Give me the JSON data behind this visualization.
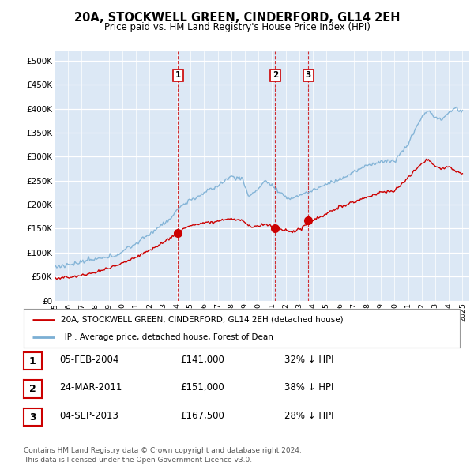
{
  "title": "20A, STOCKWELL GREEN, CINDERFORD, GL14 2EH",
  "subtitle": "Price paid vs. HM Land Registry's House Price Index (HPI)",
  "ylabel_ticks": [
    "£0",
    "£50K",
    "£100K",
    "£150K",
    "£200K",
    "£250K",
    "£300K",
    "£350K",
    "£400K",
    "£450K",
    "£500K"
  ],
  "ytick_values": [
    0,
    50000,
    100000,
    150000,
    200000,
    250000,
    300000,
    350000,
    400000,
    450000,
    500000
  ],
  "ylim": [
    0,
    520000
  ],
  "xlim_start": 1995.0,
  "xlim_end": 2025.5,
  "hpi_color": "#7bafd4",
  "price_color": "#cc0000",
  "legend_label_price": "20A, STOCKWELL GREEN, CINDERFORD, GL14 2EH (detached house)",
  "legend_label_hpi": "HPI: Average price, detached house, Forest of Dean",
  "trans_times": [
    2004.09,
    2011.23,
    2013.67
  ],
  "trans_prices": [
    141000,
    151000,
    167500
  ],
  "table_rows": [
    {
      "num": "1",
      "date": "05-FEB-2004",
      "price": "£141,000",
      "hpi": "32% ↓ HPI"
    },
    {
      "num": "2",
      "date": "24-MAR-2011",
      "price": "£151,000",
      "hpi": "38% ↓ HPI"
    },
    {
      "num": "3",
      "date": "04-SEP-2013",
      "price": "£167,500",
      "hpi": "28% ↓ HPI"
    }
  ],
  "footnote": "Contains HM Land Registry data © Crown copyright and database right 2024.\nThis data is licensed under the Open Government Licence v3.0.",
  "background_color": "#ffffff",
  "plot_bg_color": "#dce8f5"
}
